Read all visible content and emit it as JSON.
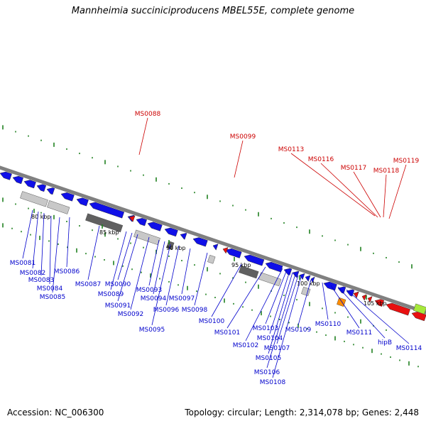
{
  "title": "Mannheimia succiniciproducens MBEL55E, complete genome",
  "footer": {
    "accession_label": "Accession:",
    "accession": "NC_006300",
    "topology_label": "Topology:",
    "topology": "circular",
    "length_label": "Length:",
    "length": "2,314,078 bp",
    "genes_label": "Genes:",
    "genes": "2,448"
  },
  "colors": {
    "forward_strand": "#1010e8",
    "reverse_strand_light": "#c8c8c8",
    "reverse_strand_dark": "#606060",
    "highlight": "#e81010",
    "misc_orange": "#ff8c00",
    "misc_green": "#a6e83a",
    "gc_skew_ticks": "#208020",
    "backbone": "#808080"
  },
  "kbp_markers": [
    "80 kbp",
    "85 kbp",
    "90 kbp",
    "95 kbp",
    "100 kbp",
    "105 kbp"
  ],
  "gene_labels_blue": [
    "MS0081",
    "MS0082",
    "MS0083",
    "MS0084",
    "MS0085",
    "MS0086",
    "MS0087",
    "MS0089",
    "MS0090",
    "MS0091",
    "MS0092",
    "MS0093",
    "MS0094",
    "MS0095",
    "MS0096",
    "MS0097",
    "MS0098",
    "MS0100",
    "MS0101",
    "MS0102",
    "MS0103",
    "MS0104",
    "MS0105",
    "MS0106",
    "MS0107",
    "MS0108",
    "MS0109",
    "MS0110",
    "MS0111",
    "hipB",
    "MS0114"
  ],
  "gene_labels_red": [
    "MS0088",
    "MS0099",
    "MS0113",
    "MS0116",
    "MS0117",
    "MS0118",
    "MS0119"
  ]
}
